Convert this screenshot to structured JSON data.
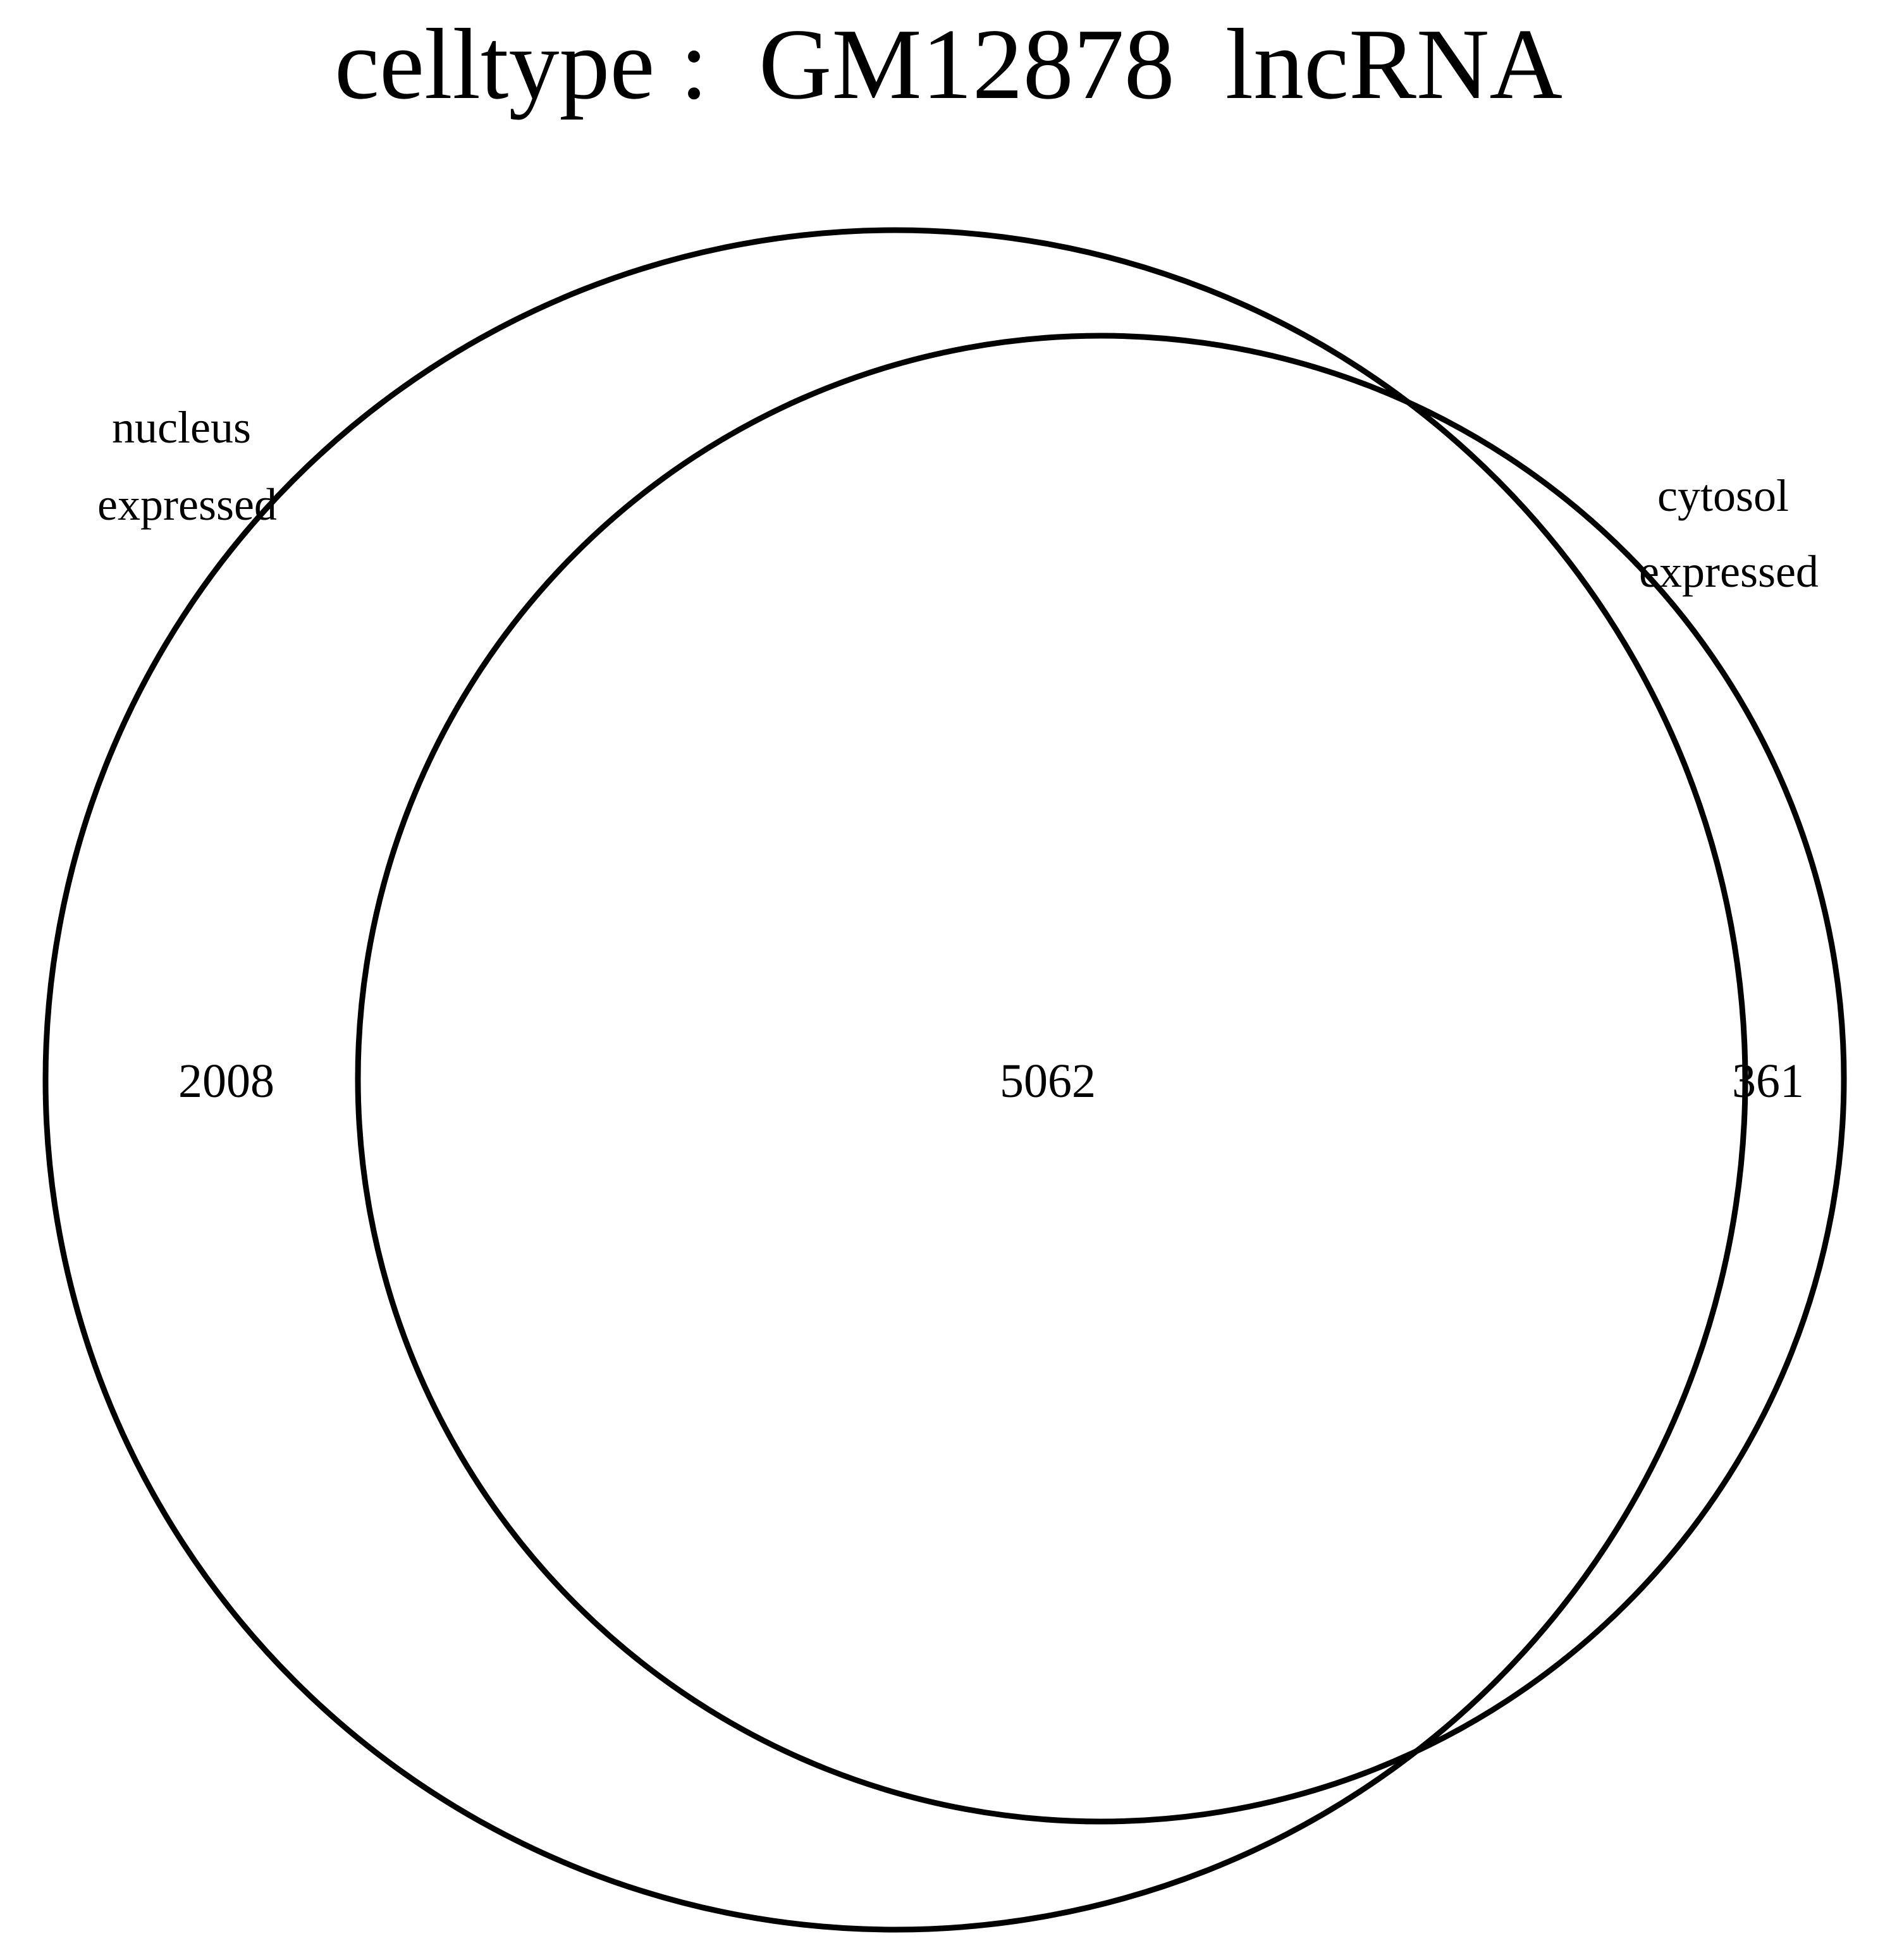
{
  "title": "celltype :  GM12878  lncRNA",
  "sets": [
    {
      "id": "nucleus",
      "label_lines": [
        "nucleus",
        "expressed"
      ]
    },
    {
      "id": "cytosol",
      "label_lines": [
        "cytosol",
        "expressed"
      ]
    }
  ],
  "regions": {
    "nucleus_only": "2008",
    "both": "5062",
    "cytosol_only": "361"
  },
  "colors": {
    "stroke": "#000000",
    "background": "#ffffff",
    "text": "#000000"
  }
}
